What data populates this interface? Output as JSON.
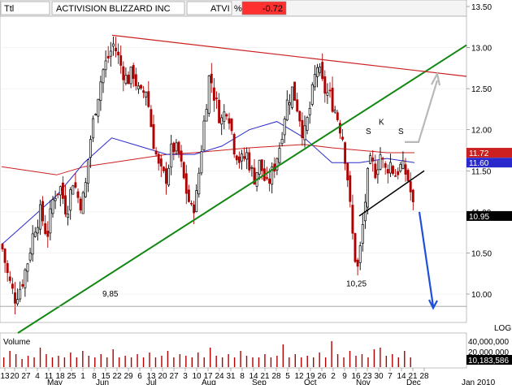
{
  "header": {
    "timeframe": "Ttl",
    "company": "ACTIVISION BLIZZARD INC",
    "ticker": "ATVI",
    "percent_symbol": "%",
    "change": "-0.72",
    "change_color": "#ff3030"
  },
  "colors": {
    "up_candle": "#000000",
    "down_candle": "#b00000",
    "ma_short": "#2a2acc",
    "ma_long": "#cc2020",
    "trend_line_green": "#118811",
    "resistance_line": "#cc2020",
    "projection_up": "#b8b8b8",
    "projection_down": "#2050d8",
    "neckline": "#000000",
    "price_badge": "#cc2020",
    "ma_badge": "#2a2acc",
    "current_badge": "#000000"
  },
  "chart_data": {
    "type": "candlestick",
    "title": "ACTIVISION BLIZZARD INC",
    "ticker": "ATVI",
    "y_ticks": [
      "13.50",
      "13.00",
      "12.50",
      "12.00",
      "11.50",
      "11.00",
      "10.50",
      "10.00"
    ],
    "ylim": [
      9.7,
      13.6
    ],
    "x_axis_label_rows": {
      "days": [
        "13",
        "20",
        "27",
        "4",
        "11",
        "18",
        "25",
        "1",
        "8",
        "15",
        "22",
        "29",
        "6",
        "13",
        "20",
        "27",
        "3",
        "10",
        "17",
        "24",
        "31",
        "8",
        "14",
        "21",
        "28",
        "5",
        "12",
        "19",
        "26",
        "2",
        "9",
        "16",
        "23",
        "30",
        "7",
        "14",
        "21",
        "28"
      ],
      "months": [
        "May",
        "Jun",
        "Jul",
        "Aug",
        "Sep",
        "Oct",
        "Nov",
        "Dec",
        "Jan 2010"
      ]
    },
    "price_badges": [
      {
        "label": "11.72",
        "value": 11.72,
        "kind": "ma_long"
      },
      {
        "label": "11.60",
        "value": 11.6,
        "kind": "ma_short"
      },
      {
        "label": "10.95",
        "value": 10.95,
        "kind": "current"
      }
    ],
    "annotations": [
      {
        "text": "9,85",
        "value": 9.85
      },
      {
        "text": "10,25",
        "value": 10.25
      },
      {
        "text": "S",
        "role": "left-shoulder"
      },
      {
        "text": "K",
        "role": "head"
      },
      {
        "text": "S",
        "role": "right-shoulder"
      }
    ],
    "ohlc_sketch": [
      {
        "period": "May",
        "open": 10.6,
        "high": 10.9,
        "low": 9.85,
        "close": 10.2
      },
      {
        "period": "late May",
        "open": 10.6,
        "high": 11.5,
        "low": 10.4,
        "close": 11.3
      },
      {
        "period": "early Jun",
        "open": 12.2,
        "high": 13.15,
        "low": 12.0,
        "close": 12.9
      },
      {
        "period": "late Jun",
        "open": 12.7,
        "high": 12.9,
        "low": 11.8,
        "close": 12.1
      },
      {
        "period": "Jul",
        "open": 11.5,
        "high": 11.9,
        "low": 10.8,
        "close": 11.4
      },
      {
        "period": "early Aug",
        "open": 12.5,
        "high": 13.0,
        "low": 12.1,
        "close": 12.3
      },
      {
        "period": "Sep",
        "open": 11.5,
        "high": 12.1,
        "low": 11.3,
        "close": 11.9
      },
      {
        "period": "early Oct",
        "open": 12.6,
        "high": 12.98,
        "low": 12.2,
        "close": 12.5
      },
      {
        "period": "late Oct",
        "open": 11.8,
        "high": 12.1,
        "low": 10.9,
        "close": 11.0
      },
      {
        "period": "early Nov",
        "open": 10.7,
        "high": 11.1,
        "low": 10.25,
        "close": 10.6
      },
      {
        "period": "Nov",
        "open": 11.5,
        "high": 11.9,
        "low": 11.3,
        "close": 11.7
      },
      {
        "period": "early Dec",
        "open": 11.3,
        "high": 11.6,
        "low": 10.9,
        "close": 10.95
      }
    ],
    "ma_long_values": [
      11.55,
      11.5,
      11.45,
      11.55,
      11.6,
      11.65,
      11.7,
      11.72,
      11.75,
      11.78,
      11.8,
      11.82,
      11.78,
      11.75,
      11.72,
      11.72
    ],
    "ma_short_values": [
      10.6,
      10.9,
      11.2,
      11.6,
      11.9,
      11.8,
      11.7,
      11.7,
      11.8,
      12.0,
      12.1,
      11.9,
      11.6,
      11.6,
      11.65,
      11.6
    ],
    "trend_lines": [
      {
        "name": "support",
        "from_value": 9.5,
        "to_value": 13.15
      },
      {
        "name": "resistance",
        "from_value": 13.15,
        "to_value": 12.65
      },
      {
        "name": "neckline",
        "from_value": 10.95,
        "to_value": 11.5
      }
    ],
    "horizontal_level": 9.85,
    "volume": {
      "y_ticks": [
        "40,000,000",
        "20,000,000"
      ],
      "current_label": "10,183,586",
      "scale_label": "LOG",
      "label": "Volume",
      "bars": [
        0.3,
        0.5,
        0.4,
        0.25,
        0.35,
        0.3,
        0.6,
        0.4,
        0.3,
        0.35,
        0.3,
        0.45,
        0.3,
        0.5,
        0.35,
        0.3,
        0.4,
        0.3,
        0.55,
        0.3,
        0.35,
        0.3,
        0.4,
        0.3,
        0.45,
        0.3,
        0.35,
        0.5,
        0.3,
        0.4,
        0.35,
        0.3,
        0.45,
        0.3,
        0.6,
        0.35,
        0.3,
        0.4,
        0.3,
        0.5,
        0.35,
        0.3,
        0.3,
        0.4,
        0.3,
        0.35,
        0.7,
        0.3,
        0.4,
        0.3,
        0.35,
        0.3,
        0.45,
        0.3,
        0.8,
        0.4,
        0.3,
        0.5,
        0.35,
        0.4,
        0.3,
        0.55,
        0.6,
        0.35,
        0.4,
        0.3,
        0.5,
        0.3
      ]
    }
  }
}
